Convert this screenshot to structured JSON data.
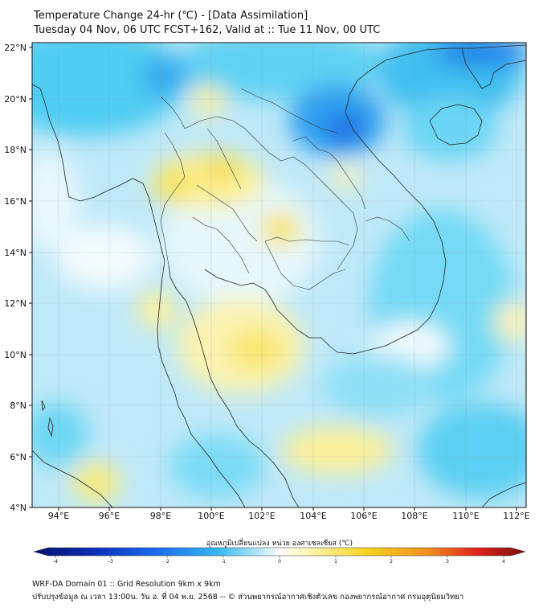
{
  "title_line1": "Temperature Change 24-hr (℃) - [Data Assimilation]",
  "title_line2": "Tuesday 04 Nov, 06 UTC FCST+162, Valid at :: Tue 11 Nov, 00 UTC",
  "lat_labels": [
    "22°N",
    "20°N",
    "18°N",
    "16°N",
    "14°N",
    "12°N",
    "10°N",
    "8°N",
    "6°N",
    "4°N"
  ],
  "lon_labels": [
    "94°E",
    "96°E",
    "98°E",
    "100°E",
    "102°E",
    "104°E",
    "106°E",
    "108°E",
    "110°E",
    "112°E"
  ],
  "colorbar": {
    "label": "อุณหภูมิเปลี่ยนแปลง หน่วย องศาเซลเซียส (℃)",
    "ticks": [
      "-4",
      "-3",
      "-2",
      "-1",
      "0",
      "1",
      "2",
      "3",
      "4"
    ],
    "range": [
      -4,
      4
    ],
    "colors": [
      "#08106a",
      "#0b2fb6",
      "#1a6cf0",
      "#37b8ee",
      "#c8eefa",
      "#ffffff",
      "#fff6b0",
      "#f5d21c",
      "#f29020",
      "#e0241c",
      "#7a0d0d"
    ]
  },
  "footer_line1": "WRF-DA Domain 01 :: Grid Resolution 9km x 9km",
  "footer_line2": "ปรับปรุงข้อมูล ณ เวลา 13:00น. วัน อ. ที่ 04 พ.ย. 2568 -- © ส่วนพยากรณ์อากาศเชิงตัวเลข กองพยากรณ์อากาศ กรมอุตุนิยมวิทยา"
}
